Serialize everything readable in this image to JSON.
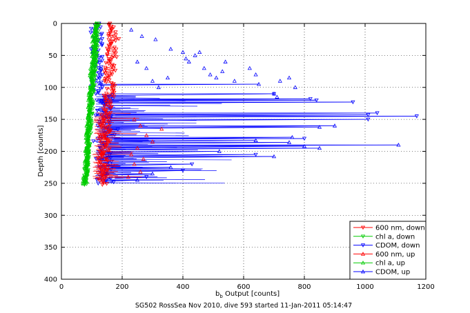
{
  "chart_data": {
    "type": "scatter",
    "xlabel": "b",
    "xlabel_subscript": "b",
    "xlabel_suffix": " Output [counts]",
    "ylabel": "Depth [counts]",
    "caption": "SG502 RossSea Nov 2010, dive 593 started 11-Jan-2011 05:14:47",
    "xlim": [
      0,
      1200
    ],
    "ylim": [
      0,
      400
    ],
    "y_reversed": true,
    "grid": "dotted",
    "xticks": [
      "0",
      "200",
      "400",
      "600",
      "800",
      "1000",
      "1200"
    ],
    "yticks": [
      "0",
      "50",
      "100",
      "150",
      "200",
      "250",
      "300",
      "350",
      "400"
    ],
    "legend_position": "bottom-right",
    "series": [
      {
        "name": "600 nm, down",
        "color": "#ff0000",
        "marker": "triangle-down"
      },
      {
        "name": "chl a, down",
        "color": "#00cc00",
        "marker": "triangle-down"
      },
      {
        "name": "CDOM, down",
        "color": "#0000ff",
        "marker": "triangle-down"
      },
      {
        "name": "600 nm, up",
        "color": "#ff0000",
        "marker": "triangle-up"
      },
      {
        "name": "chl a, up",
        "color": "#00cc00",
        "marker": "triangle-up"
      },
      {
        "name": "CDOM, up",
        "color": "#0000ff",
        "marker": "triangle-up"
      }
    ],
    "approximate_data": {
      "chl_a": {
        "x_range": [
          70,
          140
        ],
        "depth_range": [
          0,
          252
        ]
      },
      "red_600nm": {
        "x_range": [
          100,
          225
        ],
        "depth_range": [
          0,
          252
        ],
        "spikes_to": 330
      },
      "cdom": {
        "x_range": [
          80,
          1170
        ],
        "depth_range": [
          0,
          250
        ]
      },
      "cdom_upper_scatter": [
        [
          230,
          10
        ],
        [
          265,
          20
        ],
        [
          310,
          25
        ],
        [
          360,
          40
        ],
        [
          400,
          45
        ],
        [
          410,
          55
        ],
        [
          420,
          60
        ],
        [
          440,
          50
        ],
        [
          455,
          45
        ],
        [
          470,
          70
        ],
        [
          490,
          80
        ],
        [
          510,
          85
        ],
        [
          530,
          75
        ],
        [
          540,
          60
        ],
        [
          570,
          90
        ],
        [
          620,
          70
        ],
        [
          640,
          80
        ],
        [
          700,
          110
        ],
        [
          710,
          115
        ],
        [
          720,
          90
        ],
        [
          750,
          85
        ],
        [
          770,
          100
        ],
        [
          250,
          60
        ],
        [
          280,
          70
        ],
        [
          300,
          90
        ],
        [
          320,
          100
        ],
        [
          350,
          85
        ]
      ],
      "cdom_spikes": [
        [
          650,
          95
        ],
        [
          700,
          110
        ],
        [
          820,
          118
        ],
        [
          840,
          120
        ],
        [
          960,
          123
        ],
        [
          1010,
          143
        ],
        [
          1040,
          140
        ],
        [
          1170,
          145
        ],
        [
          1010,
          150
        ],
        [
          900,
          160
        ],
        [
          850,
          162
        ],
        [
          760,
          178
        ],
        [
          800,
          180
        ],
        [
          640,
          183
        ],
        [
          750,
          186
        ],
        [
          1110,
          190
        ],
        [
          800,
          192
        ],
        [
          850,
          195
        ],
        [
          520,
          200
        ],
        [
          640,
          205
        ],
        [
          700,
          208
        ],
        [
          430,
          220
        ],
        [
          360,
          225
        ],
        [
          400,
          230
        ],
        [
          300,
          235
        ],
        [
          280,
          240
        ],
        [
          250,
          245
        ]
      ],
      "red_spikes": [
        [
          240,
          150
        ],
        [
          260,
          160
        ],
        [
          330,
          165
        ],
        [
          280,
          175
        ],
        [
          300,
          185
        ],
        [
          250,
          195
        ],
        [
          230,
          205
        ],
        [
          270,
          212
        ],
        [
          240,
          220
        ],
        [
          260,
          232
        ],
        [
          220,
          240
        ]
      ]
    }
  }
}
